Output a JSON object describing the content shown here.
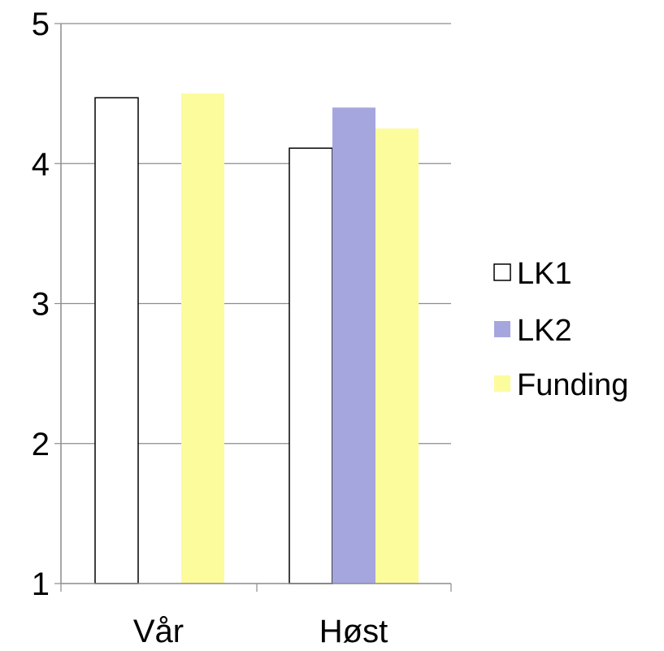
{
  "chart_data": {
    "type": "bar",
    "title": "",
    "xlabel": "",
    "ylabel": "",
    "categories": [
      "Vår",
      "Høst"
    ],
    "series": [
      {
        "name": "LK1",
        "values": [
          4.47,
          4.11
        ],
        "color": "#ffffff",
        "stroke": "#000000"
      },
      {
        "name": "LK2",
        "values": [
          null,
          4.4
        ],
        "color": "#a6a6de",
        "stroke": "none"
      },
      {
        "name": "Funding",
        "values": [
          4.5,
          4.25
        ],
        "color": "#fcfc9c",
        "stroke": "none"
      }
    ],
    "ylim": [
      1,
      5
    ],
    "yticks": [
      "1",
      "2",
      "3",
      "4",
      "5"
    ],
    "grid": true,
    "legend_position": "right"
  }
}
